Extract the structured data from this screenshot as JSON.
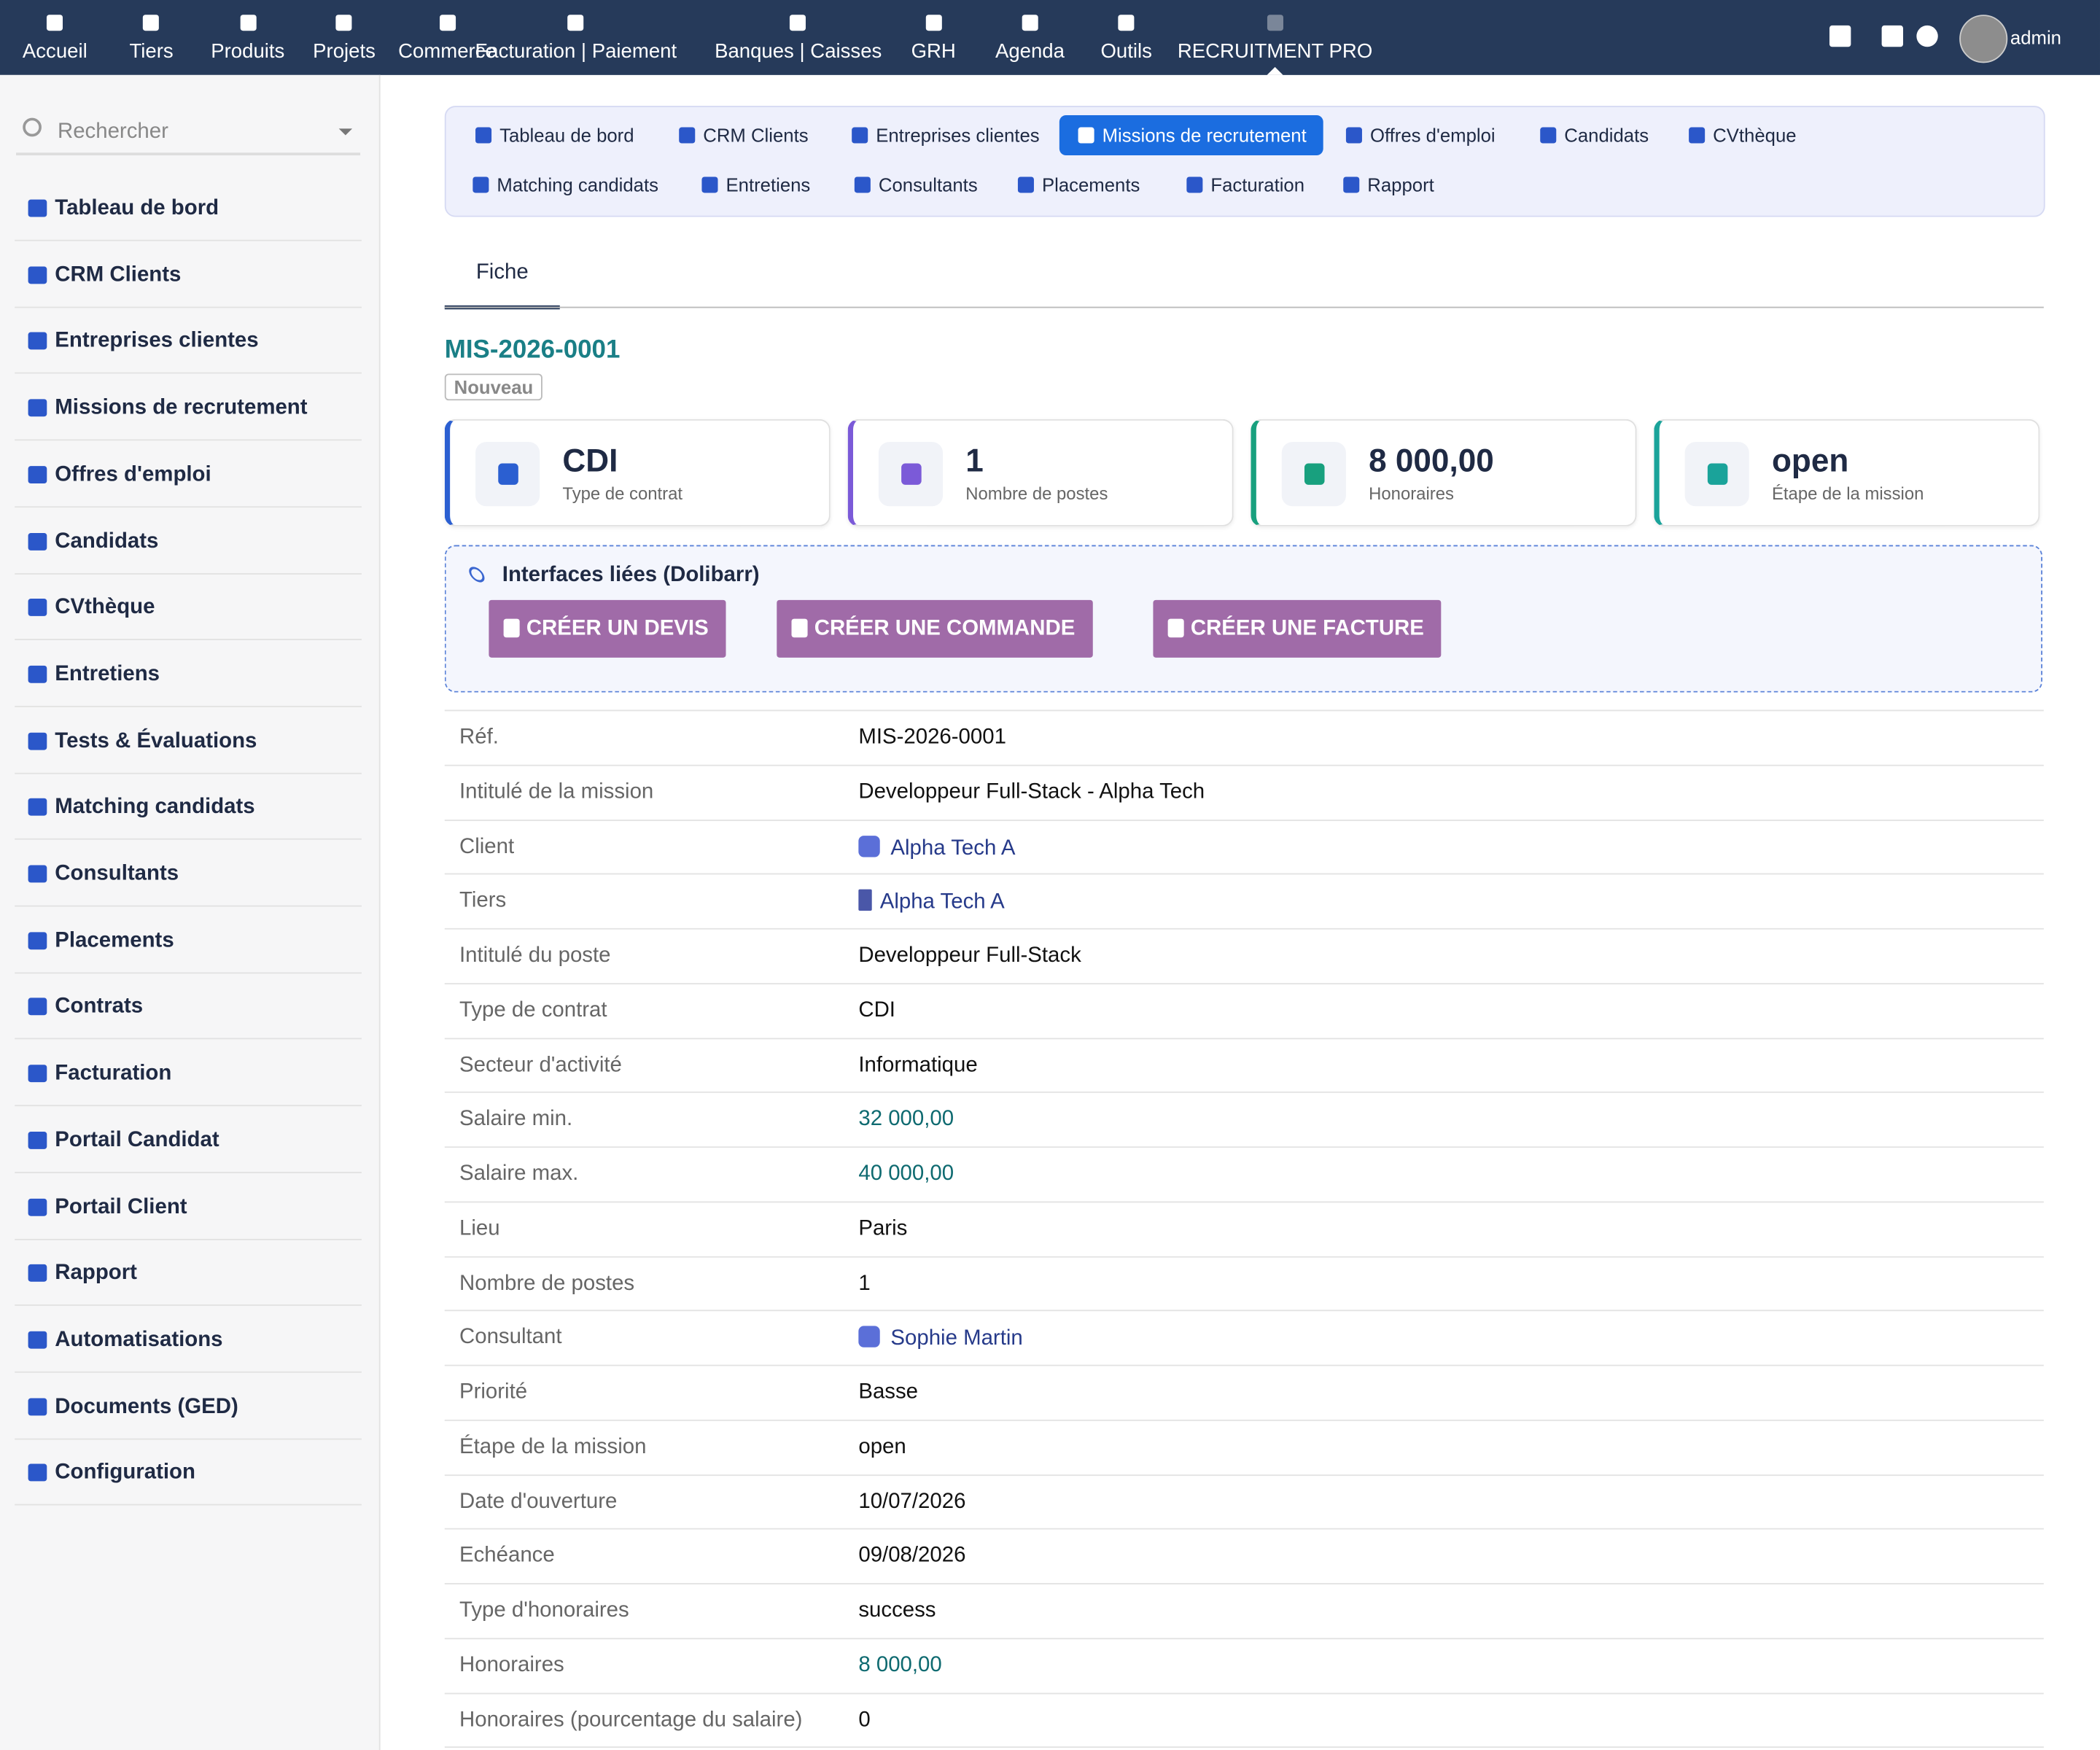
{
  "topnav": {
    "items": [
      "Accueil",
      "Tiers",
      "Produits",
      "Projets",
      "Commerce",
      "Facturation | Paiement",
      "Banques | Caisses",
      "GRH",
      "Agenda",
      "Outils",
      "RECRUITMENT PRO"
    ],
    "user": "admin"
  },
  "sidebar": {
    "search": "Rechercher",
    "items": [
      "Tableau de bord",
      "CRM Clients",
      "Entreprises clientes",
      "Missions de recrutement",
      "Offres d'emploi",
      "Candidats",
      "CVthèque",
      "Entretiens",
      "Tests & Évaluations",
      "Matching candidats",
      "Consultants",
      "Placements",
      "Contrats",
      "Facturation",
      "Portail Candidat",
      "Portail Client",
      "Rapport",
      "Automatisations",
      "Documents (GED)",
      "Configuration"
    ]
  },
  "subnav": {
    "items": [
      "Tableau de bord",
      "CRM Clients",
      "Entreprises clientes",
      "Missions de recrutement",
      "Offres d'emploi",
      "Candidats",
      "CVthèque",
      "Matching candidats",
      "Entretiens",
      "Consultants",
      "Placements",
      "Facturation",
      "Rapport"
    ]
  },
  "fiche": {
    "tab": "Fiche",
    "ref": "MIS-2026-0001",
    "status": "Nouveau"
  },
  "cards": [
    {
      "value": "CDI",
      "label": "Type de contrat"
    },
    {
      "value": 1,
      "label": "Nombre de postes"
    },
    {
      "value": "8 000,00",
      "label": "Honoraires"
    },
    {
      "value": "open",
      "label": "Étape de la mission"
    }
  ],
  "linked": {
    "title": "Interfaces liées (Dolibarr)",
    "buttons": [
      "CRÉER UN DEVIS",
      "CRÉER UNE COMMANDE",
      "CRÉER UNE FACTURE"
    ]
  },
  "fields": [
    [
      "Réf.",
      "MIS-2026-0001"
    ],
    [
      "Intitulé de la mission",
      "Developpeur Full-Stack - Alpha Tech"
    ],
    [
      "Client",
      "Alpha Tech A"
    ],
    [
      "Tiers",
      "Alpha Tech A"
    ],
    [
      "Intitulé du poste",
      "Developpeur Full-Stack"
    ],
    [
      "Type de contrat",
      "CDI"
    ],
    [
      "Secteur d'activité",
      "Informatique"
    ],
    [
      "Salaire min.",
      "32 000,00"
    ],
    [
      "Salaire max.",
      "40 000,00"
    ],
    [
      "Lieu",
      "Paris"
    ],
    [
      "Nombre de postes",
      1
    ],
    [
      "Consultant",
      "Sophie Martin"
    ],
    [
      "Priorité",
      "Basse"
    ],
    [
      "Étape de la mission",
      "open"
    ],
    [
      "Date d'ouverture",
      "10/07/2026"
    ],
    [
      "Echéance",
      "09/08/2026"
    ],
    [
      "Type d'honoraires",
      "success"
    ],
    [
      "Honoraires",
      "8 000,00"
    ],
    [
      "Honoraires (pourcentage du salaire)",
      0
    ]
  ]
}
